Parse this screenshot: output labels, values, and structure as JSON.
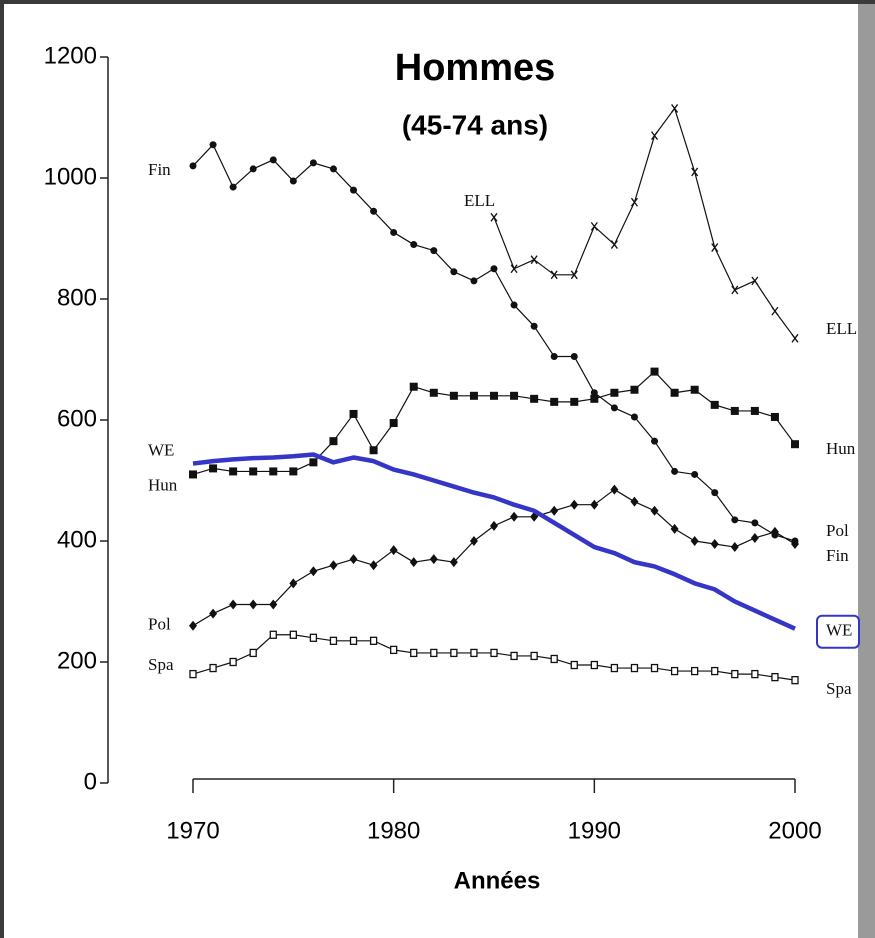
{
  "chart_data": {
    "type": "line",
    "title": "Hommes",
    "subtitle": "(45-74 ans)",
    "x_label": "Années",
    "x": [
      1970,
      1971,
      1972,
      1973,
      1974,
      1975,
      1976,
      1977,
      1978,
      1979,
      1980,
      1981,
      1982,
      1983,
      1984,
      1985,
      1986,
      1987,
      1988,
      1989,
      1990,
      1991,
      1992,
      1993,
      1994,
      1995,
      1996,
      1997,
      1998,
      1999,
      2000
    ],
    "xlim": [
      1970,
      2000
    ],
    "xticks": [
      1970,
      1980,
      1990,
      2000
    ],
    "ylim": [
      0,
      1200
    ],
    "yticks": [
      0,
      200,
      400,
      600,
      800,
      1000,
      1200
    ],
    "series": [
      {
        "name": "Fin",
        "color": "#111111",
        "marker": "dot",
        "values": [
          1020,
          1055,
          985,
          1015,
          1030,
          995,
          1025,
          1015,
          980,
          945,
          910,
          890,
          880,
          845,
          830,
          850,
          790,
          755,
          705,
          705,
          645,
          620,
          605,
          565,
          515,
          510,
          480,
          435,
          430,
          410,
          400
        ]
      },
      {
        "name": "ELL",
        "color": "#111111",
        "marker": "x",
        "values": [
          null,
          null,
          null,
          null,
          null,
          null,
          null,
          null,
          null,
          null,
          null,
          null,
          null,
          null,
          null,
          935,
          850,
          865,
          840,
          840,
          920,
          890,
          960,
          1070,
          1115,
          1010,
          885,
          815,
          830,
          780,
          735
        ]
      },
      {
        "name": "Hun",
        "color": "#111111",
        "marker": "square",
        "values": [
          510,
          520,
          515,
          515,
          515,
          515,
          530,
          565,
          610,
          550,
          595,
          655,
          645,
          640,
          640,
          640,
          640,
          635,
          630,
          630,
          635,
          645,
          650,
          680,
          645,
          650,
          625,
          615,
          615,
          605,
          560
        ]
      },
      {
        "name": "Pol",
        "color": "#111111",
        "marker": "diamond",
        "values": [
          260,
          280,
          295,
          295,
          295,
          330,
          350,
          360,
          370,
          360,
          385,
          365,
          370,
          365,
          400,
          425,
          440,
          440,
          450,
          460,
          460,
          485,
          465,
          450,
          420,
          400,
          395,
          390,
          405,
          415,
          395
        ]
      },
      {
        "name": "Spa",
        "color": "#111111",
        "marker": "open-square",
        "values": [
          180,
          190,
          200,
          215,
          245,
          245,
          240,
          235,
          235,
          235,
          220,
          215,
          215,
          215,
          215,
          215,
          210,
          210,
          205,
          195,
          195,
          190,
          190,
          190,
          185,
          185,
          185,
          180,
          180,
          175,
          170
        ]
      },
      {
        "name": "WE",
        "color": "#3535c8",
        "marker": "none",
        "values": [
          528,
          532,
          535,
          537,
          538,
          540,
          543,
          530,
          538,
          532,
          518,
          510,
          500,
          490,
          480,
          472,
          460,
          450,
          430,
          410,
          390,
          380,
          365,
          358,
          345,
          330,
          320,
          300,
          285,
          270,
          255
        ]
      }
    ]
  }
}
